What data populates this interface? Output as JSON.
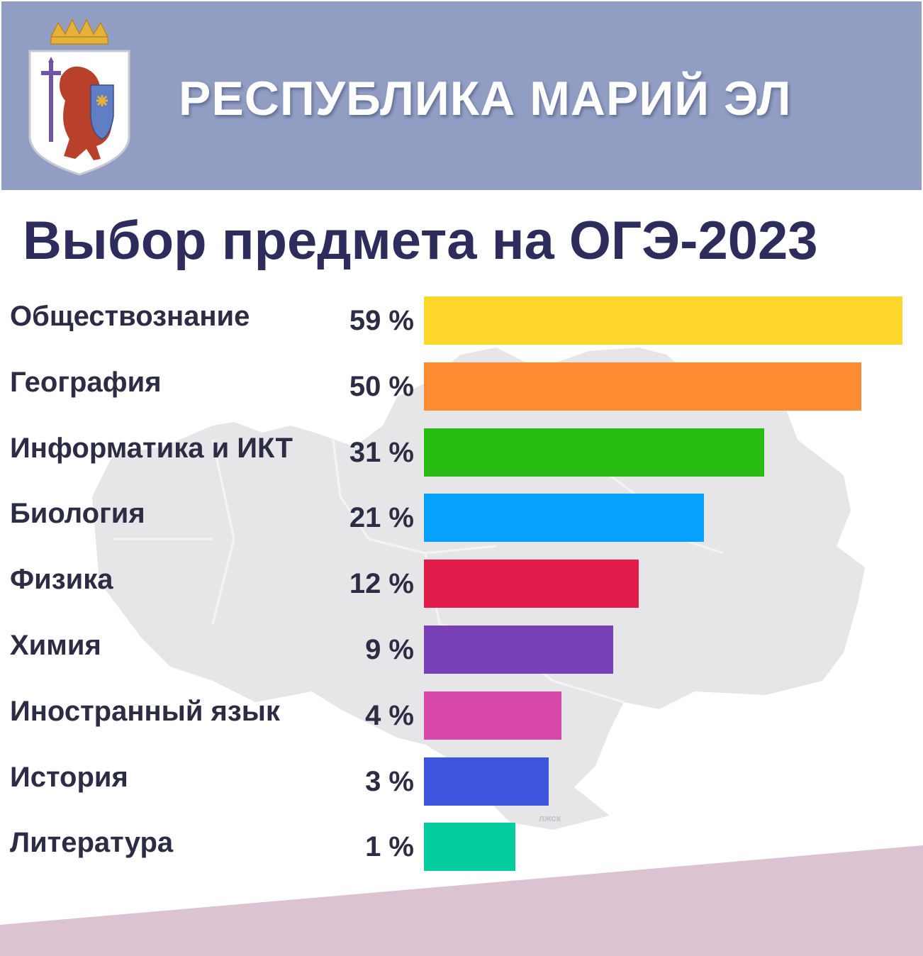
{
  "header": {
    "title": "РЕСПУБЛИКА МАРИЙ ЭЛ",
    "emblem_icon": "coat-of-arms-icon",
    "background_color": "#919dc2"
  },
  "main_title": "Выбор предмета на ОГЭ-2023",
  "chart_data": {
    "type": "bar",
    "orientation": "horizontal",
    "title": "Выбор предмета на ОГЭ-2023",
    "xlabel": "",
    "ylabel": "",
    "categories": [
      "Обществознание",
      "География",
      "Информатика и ИКТ",
      "Биология",
      "Физика",
      "Химия",
      "Иностранный язык",
      "История",
      "Литература"
    ],
    "values": [
      59,
      50,
      31,
      21,
      12,
      9,
      4,
      3,
      1
    ],
    "value_labels": [
      "59 %",
      "50 %",
      "31 %",
      "21 %",
      "12 %",
      "9 %",
      "4 %",
      "3 %",
      "1 %"
    ],
    "colors": [
      "#fdd72a",
      "#ff8c32",
      "#28bc13",
      "#05a1fd",
      "#e11b4a",
      "#7a40b8",
      "#d848a8",
      "#3f54dd",
      "#04cc9e"
    ],
    "grid": false,
    "legend": "none"
  }
}
